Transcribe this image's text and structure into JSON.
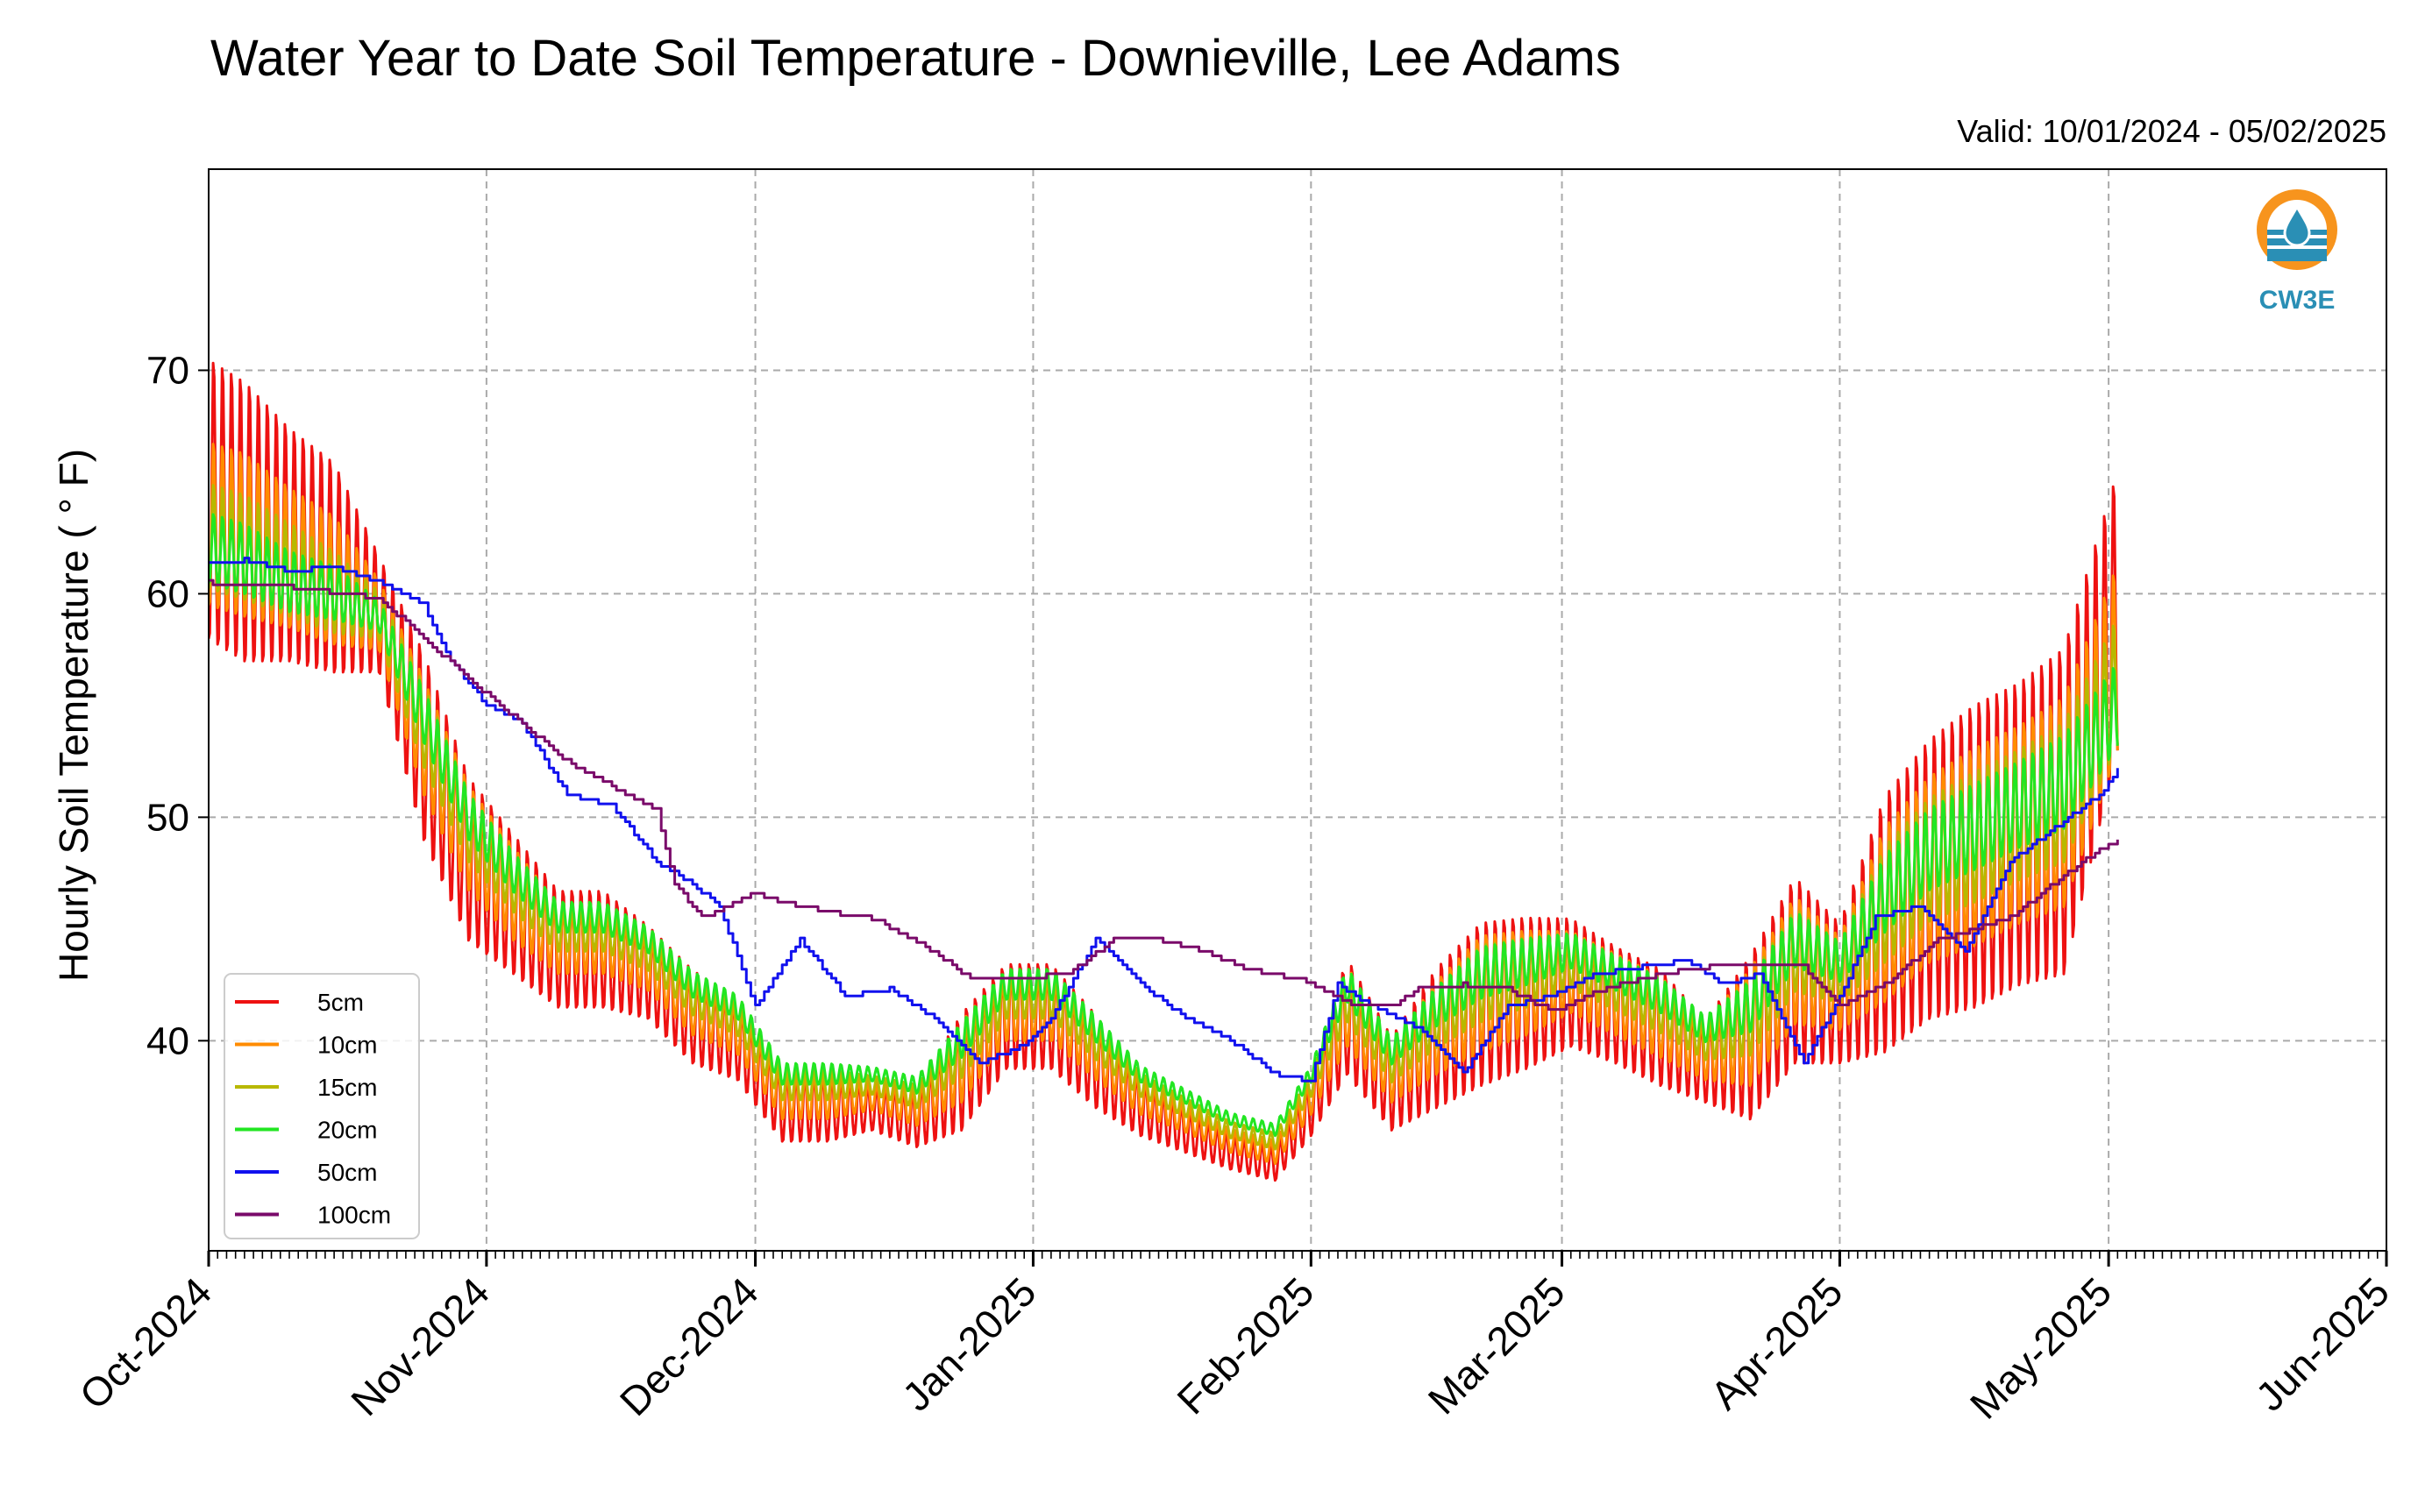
{
  "chart_data": {
    "type": "line",
    "title": "Water Year to Date Soil Temperature - Downieville, Lee Adams",
    "subtitle": "Valid: 10/01/2024 - 05/02/2025",
    "ylabel": "Hourly Soil Temperature ($^\\circ$F)",
    "ylabel_text": "Hourly Soil Temperature ( ° F)",
    "xlabel": "",
    "ylim": [
      30.6,
      79.0
    ],
    "xlim": [
      "2024-10-01",
      "2025-06-01"
    ],
    "yticks": [
      40,
      50,
      60,
      70
    ],
    "xticks": [
      "Oct-2024",
      "Nov-2024",
      "Dec-2024",
      "Jan-2025",
      "Feb-2025",
      "Mar-2025",
      "Apr-2025",
      "May-2025",
      "Jun-2025"
    ],
    "grid": true,
    "legend_position": "lower-left",
    "logo": "CW3E",
    "series": [
      {
        "name": "5cm",
        "color": "#ee1111",
        "dates": [
          "2024-10-01",
          "2024-10-05",
          "2024-10-10",
          "2024-10-15",
          "2024-10-20",
          "2024-10-25",
          "2024-10-30",
          "2024-11-04",
          "2024-11-09",
          "2024-11-14",
          "2024-11-19",
          "2024-11-24",
          "2024-11-29",
          "2024-12-04",
          "2024-12-09",
          "2024-12-14",
          "2024-12-19",
          "2024-12-24",
          "2024-12-29",
          "2025-01-03",
          "2025-01-08",
          "2025-01-13",
          "2025-01-18",
          "2025-01-23",
          "2025-01-28",
          "2025-02-01",
          "2025-02-05",
          "2025-02-10",
          "2025-02-15",
          "2025-02-20",
          "2025-02-25",
          "2025-03-02",
          "2025-03-07",
          "2025-03-12",
          "2025-03-17",
          "2025-03-22",
          "2025-03-27",
          "2025-04-01",
          "2025-04-06",
          "2025-04-11",
          "2025-04-16",
          "2025-04-21",
          "2025-04-26",
          "2025-05-02"
        ],
        "mean": [
          64,
          63,
          62,
          61,
          59,
          53,
          48,
          46,
          44,
          44,
          43,
          41,
          40,
          37,
          37,
          37,
          36.5,
          38.5,
          41,
          41,
          39,
          37,
          36,
          35,
          34.5,
          37,
          41,
          38,
          40,
          41.5,
          42,
          42.5,
          41.5,
          40.5,
          39,
          40,
          43,
          42,
          45,
          47,
          48,
          49,
          50,
          59
        ],
        "amplitude": [
          12,
          12,
          10,
          9,
          5,
          8,
          7,
          6,
          5,
          5,
          4,
          4,
          3.5,
          3,
          3,
          2,
          2.5,
          5,
          4.5,
          4.5,
          4,
          2.5,
          2,
          1.5,
          1.5,
          2.5,
          5,
          4,
          6,
          7,
          6.5,
          5.5,
          5,
          5,
          3.5,
          7,
          8,
          6,
          11,
          12,
          13,
          13,
          14,
          12
        ]
      },
      {
        "name": "10cm",
        "color": "#ff8c00",
        "dates": [
          "2024-10-01",
          "2024-10-05",
          "2024-10-10",
          "2024-10-15",
          "2024-10-20",
          "2024-10-25",
          "2024-10-30",
          "2024-11-04",
          "2024-11-09",
          "2024-11-14",
          "2024-11-19",
          "2024-11-24",
          "2024-11-29",
          "2024-12-04",
          "2024-12-09",
          "2024-12-14",
          "2024-12-19",
          "2024-12-24",
          "2024-12-29",
          "2025-01-03",
          "2025-01-08",
          "2025-01-13",
          "2025-01-18",
          "2025-01-23",
          "2025-01-28",
          "2025-02-01",
          "2025-02-05",
          "2025-02-10",
          "2025-02-15",
          "2025-02-20",
          "2025-02-25",
          "2025-03-02",
          "2025-03-07",
          "2025-03-12",
          "2025-03-17",
          "2025-03-22",
          "2025-03-27",
          "2025-04-01",
          "2025-04-06",
          "2025-04-11",
          "2025-04-16",
          "2025-04-21",
          "2025-04-26",
          "2025-05-02"
        ],
        "mean": [
          63,
          62.5,
          61.5,
          60.5,
          59,
          53.5,
          49,
          46.5,
          44.5,
          44.5,
          43.5,
          41.5,
          40.5,
          37.5,
          37.5,
          37.5,
          37,
          39,
          41.5,
          41.5,
          39.5,
          37.5,
          36.5,
          35.5,
          35,
          37.5,
          41.5,
          38.5,
          40.5,
          42,
          42.5,
          43,
          42,
          41,
          39.5,
          40.5,
          43.5,
          42.5,
          45.5,
          47.5,
          48.5,
          49.5,
          50.5,
          57
        ],
        "amplitude": [
          7,
          7,
          6,
          5.5,
          3,
          5,
          4.5,
          4,
          3,
          3,
          2.5,
          2.5,
          2.2,
          2,
          2,
          1.2,
          1.6,
          3.5,
          3,
          3,
          2.5,
          1.6,
          1.2,
          1,
          1,
          1.6,
          3.5,
          2.5,
          4,
          5,
          4.5,
          3.5,
          3.5,
          3.5,
          2.5,
          5,
          5.5,
          4,
          7.5,
          8,
          8.5,
          8.5,
          9,
          8
        ]
      },
      {
        "name": "15cm",
        "color": "#b8b800",
        "dates": [
          "2024-10-01",
          "2024-10-05",
          "2024-10-10",
          "2024-10-15",
          "2024-10-20",
          "2024-10-25",
          "2024-10-30",
          "2024-11-04",
          "2024-11-09",
          "2024-11-14",
          "2024-11-19",
          "2024-11-24",
          "2024-11-29",
          "2024-12-04",
          "2024-12-09",
          "2024-12-14",
          "2024-12-19",
          "2024-12-24",
          "2024-12-29",
          "2025-01-03",
          "2025-01-08",
          "2025-01-13",
          "2025-01-18",
          "2025-01-23",
          "2025-01-28",
          "2025-02-01",
          "2025-02-05",
          "2025-02-10",
          "2025-02-15",
          "2025-02-20",
          "2025-02-25",
          "2025-03-02",
          "2025-03-07",
          "2025-03-12",
          "2025-03-17",
          "2025-03-22",
          "2025-03-27",
          "2025-04-01",
          "2025-04-06",
          "2025-04-11",
          "2025-04-16",
          "2025-04-21",
          "2025-04-26",
          "2025-05-02"
        ],
        "mean": [
          62.5,
          62,
          61,
          60,
          59,
          54,
          49.5,
          47,
          45,
          45,
          44,
          42,
          41,
          38,
          38,
          38,
          37.5,
          39.5,
          42,
          42,
          40,
          38,
          37,
          36,
          35.5,
          38,
          42,
          39,
          41,
          42.5,
          43,
          43.5,
          42.5,
          41.5,
          40,
          41,
          44,
          43,
          46,
          48,
          49,
          50,
          51,
          56
        ],
        "amplitude": [
          4.5,
          4.5,
          4,
          3.5,
          2,
          3.5,
          3,
          2.5,
          2,
          2,
          1.7,
          1.7,
          1.5,
          1.3,
          1.3,
          0.8,
          1,
          2.3,
          2,
          2,
          1.7,
          1,
          0.8,
          0.7,
          0.7,
          1,
          2.3,
          1.7,
          2.6,
          3.3,
          3,
          2.3,
          2.3,
          2.3,
          1.7,
          3.3,
          3.6,
          2.6,
          5,
          5.3,
          5.6,
          5.6,
          6,
          5.5
        ]
      },
      {
        "name": "20cm",
        "color": "#22e622",
        "dates": [
          "2024-10-01",
          "2024-10-05",
          "2024-10-10",
          "2024-10-15",
          "2024-10-20",
          "2024-10-25",
          "2024-10-30",
          "2024-11-04",
          "2024-11-09",
          "2024-11-14",
          "2024-11-19",
          "2024-11-24",
          "2024-11-29",
          "2024-12-04",
          "2024-12-09",
          "2024-12-14",
          "2024-12-19",
          "2024-12-24",
          "2024-12-29",
          "2025-01-03",
          "2025-01-08",
          "2025-01-13",
          "2025-01-18",
          "2025-01-23",
          "2025-01-28",
          "2025-02-01",
          "2025-02-05",
          "2025-02-10",
          "2025-02-15",
          "2025-02-20",
          "2025-02-25",
          "2025-03-02",
          "2025-03-07",
          "2025-03-12",
          "2025-03-17",
          "2025-03-22",
          "2025-03-27",
          "2025-04-01",
          "2025-04-06",
          "2025-04-11",
          "2025-04-16",
          "2025-04-21",
          "2025-04-26",
          "2025-05-02"
        ],
        "mean": [
          62,
          61.5,
          60.5,
          60,
          59,
          54.5,
          50,
          47.5,
          45.5,
          45.5,
          44.5,
          42.5,
          41.5,
          38.5,
          38.5,
          38.5,
          38,
          40,
          42.5,
          42.5,
          40.5,
          38.5,
          37.5,
          36.5,
          36,
          38.5,
          42.5,
          39.5,
          41.5,
          43,
          43.5,
          44,
          43,
          42,
          40.5,
          41.5,
          44.5,
          43.5,
          46.5,
          48.5,
          49.5,
          50.5,
          51.5,
          55
        ],
        "amplitude": [
          3,
          3,
          2.6,
          2.3,
          1.3,
          2.3,
          2,
          1.7,
          1.3,
          1.3,
          1.1,
          1.1,
          1,
          0.9,
          0.9,
          0.6,
          0.7,
          1.5,
          1.3,
          1.3,
          1.1,
          0.7,
          0.6,
          0.5,
          0.5,
          0.7,
          1.5,
          1.1,
          1.7,
          2.2,
          2,
          1.5,
          1.5,
          1.5,
          1.1,
          2.2,
          2.4,
          1.7,
          3.3,
          3.5,
          3.7,
          3.7,
          4,
          3.6
        ]
      },
      {
        "name": "50cm",
        "color": "#1111ee",
        "dates": [
          "2024-10-01",
          "2024-10-05",
          "2024-10-10",
          "2024-10-15",
          "2024-10-20",
          "2024-10-25",
          "2024-10-28",
          "2024-11-01",
          "2024-11-05",
          "2024-11-10",
          "2024-11-15",
          "2024-11-20",
          "2024-11-24",
          "2024-11-27",
          "2024-12-01",
          "2024-12-06",
          "2024-12-11",
          "2024-12-16",
          "2024-12-21",
          "2024-12-26",
          "2024-12-31",
          "2025-01-03",
          "2025-01-08",
          "2025-01-13",
          "2025-01-18",
          "2025-01-23",
          "2025-01-28",
          "2025-02-01",
          "2025-02-04",
          "2025-02-08",
          "2025-02-13",
          "2025-02-18",
          "2025-02-23",
          "2025-02-28",
          "2025-03-05",
          "2025-03-10",
          "2025-03-15",
          "2025-03-19",
          "2025-03-23",
          "2025-03-28",
          "2025-04-01",
          "2025-04-05",
          "2025-04-10",
          "2025-04-15",
          "2025-04-20",
          "2025-04-25",
          "2025-04-30",
          "2025-05-02"
        ],
        "values": [
          61.3,
          61.5,
          61,
          61.2,
          60.5,
          59.5,
          57,
          55,
          54.2,
          51,
          50.5,
          48,
          47,
          46,
          41.5,
          44.5,
          42,
          42.3,
          41,
          39,
          39.8,
          41,
          44.5,
          42.5,
          41,
          40,
          38.5,
          38.2,
          42.5,
          41.5,
          40.5,
          38.5,
          41.5,
          42,
          43,
          43.3,
          43.6,
          42.5,
          43,
          39,
          42,
          45.5,
          46,
          44,
          48,
          49.5,
          51,
          52.1
        ]
      },
      {
        "name": "100cm",
        "color": "#7a0a6a",
        "dates": [
          "2024-10-01",
          "2024-10-10",
          "2024-10-20",
          "2024-10-25",
          "2024-11-01",
          "2024-11-10",
          "2024-11-20",
          "2024-11-22",
          "2024-11-25",
          "2024-12-01",
          "2024-12-05",
          "2024-12-10",
          "2024-12-13",
          "2024-12-15",
          "2024-12-20",
          "2024-12-25",
          "2024-12-31",
          "2025-01-05",
          "2025-01-10",
          "2025-01-15",
          "2025-01-20",
          "2025-01-25",
          "2025-01-31",
          "2025-02-05",
          "2025-02-10",
          "2025-02-13",
          "2025-02-18",
          "2025-02-23",
          "2025-02-28",
          "2025-03-05",
          "2025-03-10",
          "2025-03-15",
          "2025-03-20",
          "2025-03-22",
          "2025-03-28",
          "2025-04-01",
          "2025-04-06",
          "2025-04-12",
          "2025-04-20",
          "2025-04-28",
          "2025-05-02"
        ],
        "values": [
          60.5,
          60.3,
          59.8,
          58,
          55.5,
          52.5,
          50.3,
          47,
          45.5,
          46.6,
          46.1,
          45.7,
          45.6,
          45.3,
          44.2,
          42.8,
          42.8,
          43,
          44.5,
          44.5,
          44,
          43.2,
          42.7,
          41.7,
          41.5,
          42.3,
          42.5,
          42.3,
          41.3,
          42.2,
          42.8,
          43.2,
          43.4,
          43.4,
          43.3,
          41.5,
          42.5,
          44.5,
          45.5,
          48,
          49
        ]
      }
    ]
  }
}
